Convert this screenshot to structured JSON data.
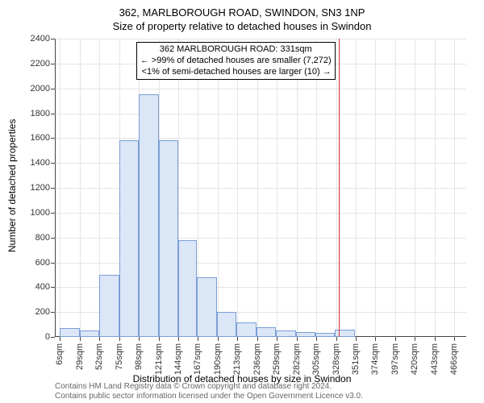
{
  "title_main": "362, MARLBOROUGH ROAD, SWINDON, SN3 1NP",
  "title_sub": "Size of property relative to detached houses in Swindon",
  "ylabel": "Number of detached properties",
  "xlabel": "Distribution of detached houses by size in Swindon",
  "footer_line1": "Contains HM Land Registry data © Crown copyright and database right 2024.",
  "footer_line2": "Contains public sector information licensed under the Open Government Licence v3.0.",
  "annotation": {
    "line1": "362 MARLBOROUGH ROAD: 331sqm",
    "line2": "← >99% of detached houses are smaller (7,272)",
    "line3": "<1% of semi-detached houses are larger (10) →"
  },
  "chart": {
    "type": "histogram",
    "background_color": "#ffffff",
    "grid_color": "#cccccc",
    "bar_fill": "#dbe6f7",
    "bar_stroke": "#7a9fd4",
    "refline_color": "#cc3333",
    "refline_x": 331,
    "ylim": [
      0,
      2400
    ],
    "ytick_step": 200,
    "xlim": [
      0,
      480
    ],
    "xtick_start": 6,
    "xtick_step": 23,
    "xtick_count": 21,
    "xtick_suffix": "sqm",
    "label_fontsize": 11,
    "axis_label_fontsize": 12,
    "title_fontsize": 13,
    "bars": [
      {
        "x0": 6,
        "x1": 29,
        "count": 70
      },
      {
        "x0": 29,
        "x1": 52,
        "count": 50
      },
      {
        "x0": 52,
        "x1": 75,
        "count": 500
      },
      {
        "x0": 75,
        "x1": 98,
        "count": 1580
      },
      {
        "x0": 98,
        "x1": 121,
        "count": 1950
      },
      {
        "x0": 121,
        "x1": 144,
        "count": 1580
      },
      {
        "x0": 144,
        "x1": 166,
        "count": 780
      },
      {
        "x0": 166,
        "x1": 189,
        "count": 480
      },
      {
        "x0": 189,
        "x1": 212,
        "count": 200
      },
      {
        "x0": 212,
        "x1": 235,
        "count": 120
      },
      {
        "x0": 235,
        "x1": 258,
        "count": 80
      },
      {
        "x0": 258,
        "x1": 281,
        "count": 50
      },
      {
        "x0": 281,
        "x1": 304,
        "count": 40
      },
      {
        "x0": 304,
        "x1": 327,
        "count": 30
      },
      {
        "x0": 327,
        "x1": 350,
        "count": 60
      },
      {
        "x0": 350,
        "x1": 373,
        "count": 0
      },
      {
        "x0": 373,
        "x1": 396,
        "count": 0
      },
      {
        "x0": 396,
        "x1": 419,
        "count": 0
      },
      {
        "x0": 419,
        "x1": 442,
        "count": 0
      },
      {
        "x0": 442,
        "x1": 465,
        "count": 0
      }
    ]
  }
}
